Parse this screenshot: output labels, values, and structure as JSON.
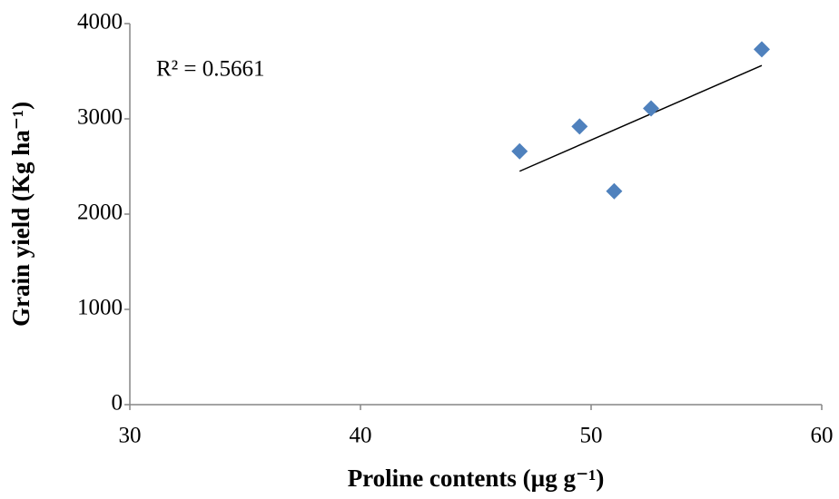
{
  "chart_data": {
    "type": "scatter",
    "x_label": "Proline contents (µg g⁻¹)",
    "y_label": "Grain yield (Kg ha⁻¹)",
    "annotation": "R² = 0.5661",
    "series": [
      {
        "color": "#4f81bd",
        "x": [
          46.9,
          49.5,
          51.0,
          52.6,
          57.4
        ],
        "values": [
          2660,
          2920,
          2240,
          3110,
          3730
        ]
      }
    ],
    "trendline": {
      "color": "#000000",
      "x": [
        46.9,
        57.4
      ],
      "values": [
        2450,
        3560
      ]
    },
    "xlim": [
      30,
      60
    ],
    "xticks": [
      30,
      40,
      50,
      60
    ],
    "ylim": [
      0,
      4000
    ],
    "yticks": [
      0,
      1000,
      2000,
      3000,
      4000
    ],
    "grid": false
  }
}
